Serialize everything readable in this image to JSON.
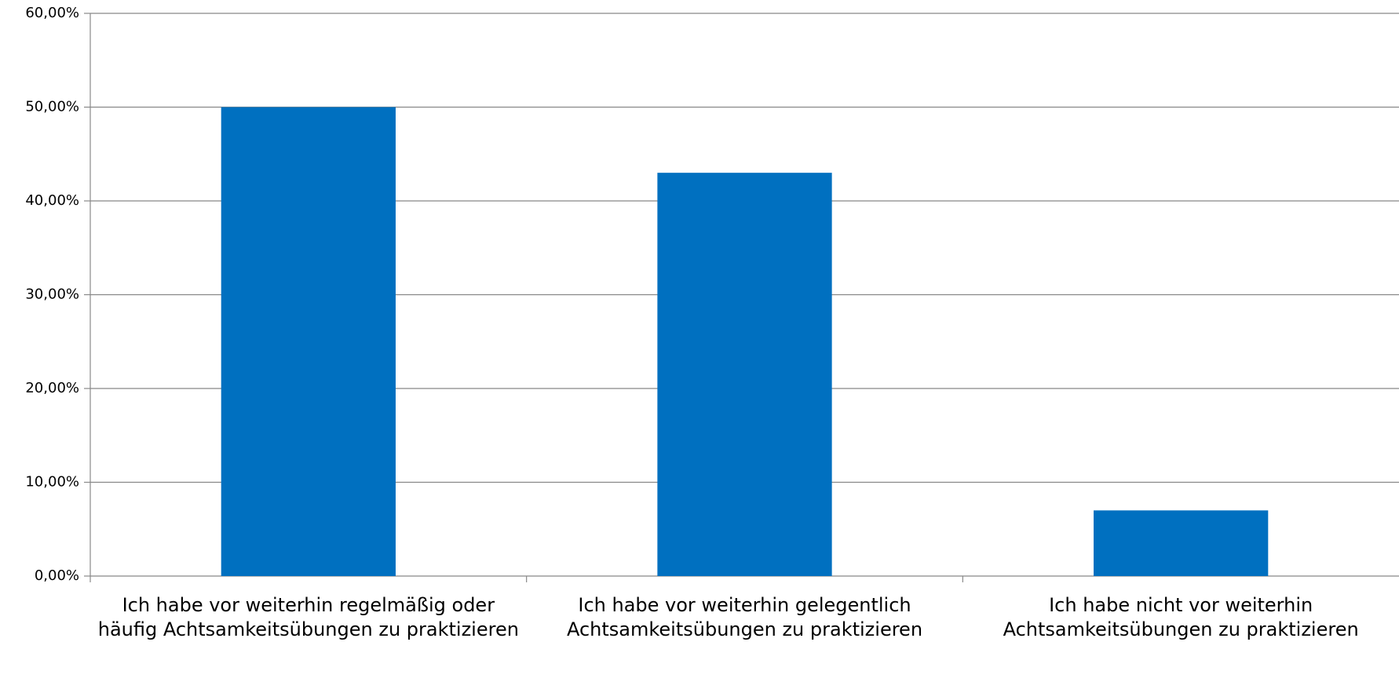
{
  "chart_data": {
    "type": "bar",
    "categories": [
      "Ich habe vor weiterhin regelmäßig oder häufig Achtsamkeitsübungen zu praktizieren",
      "Ich habe vor weiterhin gelegentlich Achtsamkeitsübungen zu praktizieren",
      "Ich habe nicht vor weiterhin Achtsamkeitsübungen zu praktizieren"
    ],
    "values": [
      50,
      43,
      7
    ],
    "color": "#0070c0",
    "ylim": [
      0,
      60
    ],
    "yticks": [
      {
        "value": 0,
        "label": "0,00%"
      },
      {
        "value": 10,
        "label": "10,00%"
      },
      {
        "value": 20,
        "label": "20,00%"
      },
      {
        "value": 30,
        "label": "30,00%"
      },
      {
        "value": 40,
        "label": "40,00%"
      },
      {
        "value": 50,
        "label": "50,00%"
      },
      {
        "value": 60,
        "label": "60,00%"
      }
    ],
    "grid": true
  }
}
